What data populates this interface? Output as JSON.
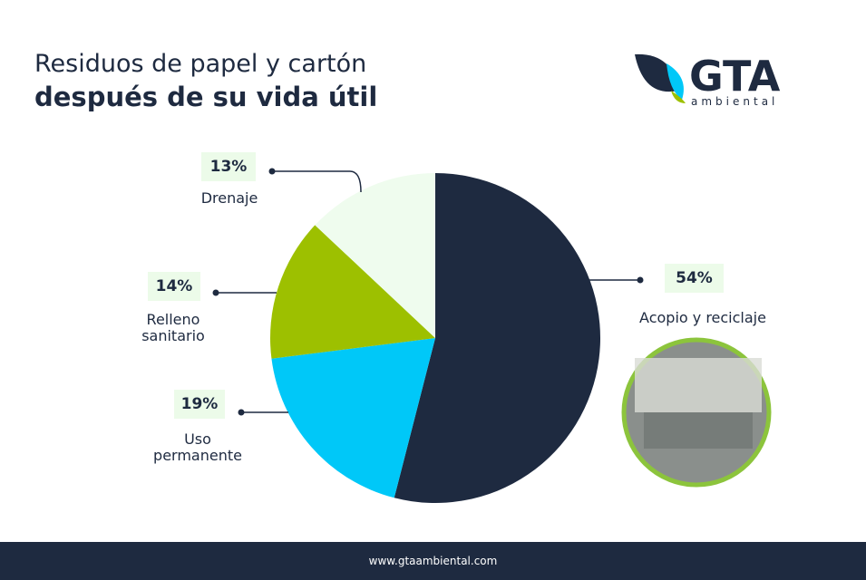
{
  "chart_data": {
    "type": "pie",
    "title": "Residuos de papel y cartón",
    "subtitle": "después de su vida útil",
    "categories": [
      "Acopio y reciclaje",
      "Uso permanente",
      "Relleno sanitario",
      "Drenaje"
    ],
    "values": [
      54,
      19,
      14,
      13
    ],
    "value_labels": [
      "54%",
      "19%",
      "14%",
      "13%"
    ],
    "colors": [
      "#1e2a40",
      "#00c8f8",
      "#9dc000",
      "#effcee"
    ]
  },
  "brand": {
    "name": "GTA",
    "tagline": "ambiental"
  },
  "footer": "www.gtaambiental.com"
}
